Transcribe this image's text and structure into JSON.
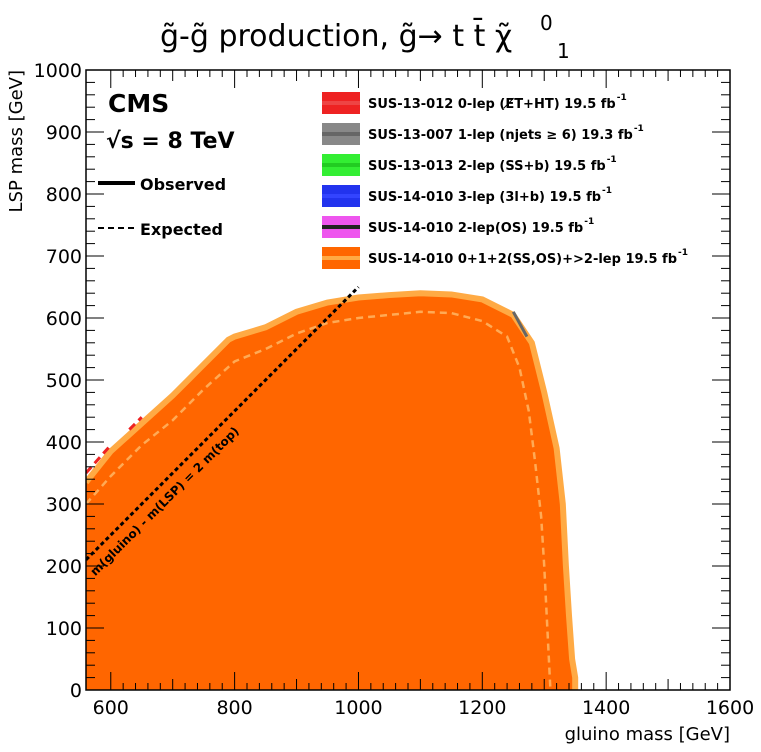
{
  "chart_data": {
    "type": "area",
    "title": "g̃-g̃ production,  g̃→ t t̄ χ̃",
    "title_superscript": "0",
    "title_subscript": "1",
    "xlabel": "gluino mass [GeV]",
    "ylabel": "LSP mass [GeV]",
    "xlim": [
      560,
      1600
    ],
    "ylim": [
      0,
      1000
    ],
    "x_ticks": [
      600,
      800,
      1000,
      1200,
      1400,
      1600
    ],
    "y_ticks": [
      0,
      100,
      200,
      300,
      400,
      500,
      600,
      700,
      800,
      900,
      1000
    ],
    "experiment": "CMS",
    "energy_label": "√s = 8 TeV",
    "style_legend": {
      "observed": "Observed",
      "expected": "Expected"
    },
    "legend": [
      {
        "label": "SUS-13-012 0-lep (E̸T+HT) 19.5 fb",
        "sup": "-1",
        "color": "#ee2222",
        "line": "#ee4444"
      },
      {
        "label": "SUS-13-007 1-lep (njets ≥ 6) 19.3 fb",
        "sup": "-1",
        "color": "#888888",
        "line": "#666666"
      },
      {
        "label": "SUS-13-013 2-lep (SS+b) 19.5 fb",
        "sup": "-1",
        "color": "#33ee33",
        "line": "#22cc22"
      },
      {
        "label": "SUS-14-010 3-lep (3l+b) 19.5 fb",
        "sup": "-1",
        "color": "#2233ee",
        "line": "#3344ff"
      },
      {
        "label": "SUS-14-010 2-lep(OS) 19.5 fb",
        "sup": "-1",
        "color": "#ee55ee",
        "line": "#222222"
      },
      {
        "label": "SUS-14-010 0+1+2(SS,OS)+>2-lep 19.5 fb",
        "sup": "-1",
        "color": "#ff6600",
        "line": "#ffaa44"
      }
    ],
    "series": [
      {
        "name": "SUS-14-010 0+1+2(SS,OS)+>2-lep 19.5 fb-1",
        "style": "observed",
        "x": [
          560,
          600,
          650,
          700,
          750,
          790,
          800,
          850,
          900,
          950,
          1000,
          1050,
          1100,
          1150,
          1200,
          1250,
          1280,
          1300,
          1320,
          1330,
          1335,
          1340,
          1345,
          1350,
          1350
        ],
        "y": [
          335,
          385,
          430,
          475,
          525,
          565,
          570,
          585,
          610,
          625,
          633,
          637,
          640,
          638,
          630,
          605,
          560,
          480,
          390,
          300,
          200,
          120,
          50,
          20,
          0
        ]
      },
      {
        "name": "SUS-14-010 0+1+2(SS,OS)+>2-lep 19.5 fb-1",
        "style": "expected",
        "x": [
          560,
          600,
          650,
          700,
          750,
          800,
          850,
          900,
          950,
          1000,
          1050,
          1100,
          1150,
          1200,
          1240,
          1260,
          1275,
          1285,
          1295,
          1300,
          1305,
          1310
        ],
        "y": [
          300,
          345,
          395,
          435,
          485,
          530,
          550,
          575,
          592,
          600,
          605,
          610,
          608,
          595,
          570,
          520,
          450,
          370,
          280,
          200,
          100,
          0
        ]
      }
    ],
    "diagonal": {
      "label": "m(gluino) - m(LSP) = 2 m(top)",
      "x": [
        560,
        1000
      ],
      "y": [
        210,
        650
      ]
    }
  }
}
